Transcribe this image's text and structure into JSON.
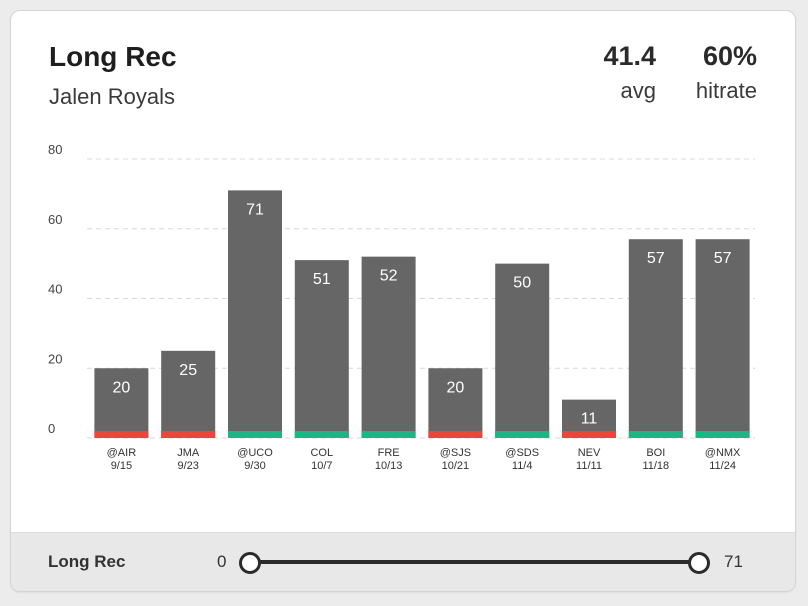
{
  "card": {
    "title": "Long Rec",
    "player": "Jalen Royals",
    "avg_value": "41.4",
    "avg_label": "avg",
    "hitrate_value": "60%",
    "hitrate_label": "hitrate"
  },
  "colors": {
    "bar": "#666666",
    "over": "#1db584",
    "under": "#e8463f",
    "grid": "#d8d8d8"
  },
  "chart_data": {
    "type": "bar",
    "categories": [
      "@AIR 9/15",
      "JMA 9/23",
      "@UCO 9/30",
      "COL 10/7",
      "FRE 10/13",
      "@SJS 10/21",
      "@SDS 11/4",
      "NEV 11/11",
      "BOI 11/18",
      "@NMX 11/24"
    ],
    "opponents": [
      "@AIR",
      "JMA",
      "@UCO",
      "COL",
      "FRE",
      "@SJS",
      "@SDS",
      "NEV",
      "BOI",
      "@NMX"
    ],
    "dates": [
      "9/15",
      "9/23",
      "9/30",
      "10/7",
      "10/13",
      "10/21",
      "11/4",
      "11/11",
      "11/18",
      "11/24"
    ],
    "values": [
      20,
      25,
      71,
      51,
      52,
      20,
      50,
      11,
      57,
      57
    ],
    "hit": [
      false,
      false,
      true,
      true,
      true,
      false,
      true,
      false,
      true,
      true
    ],
    "yticks": [
      0,
      20,
      40,
      60,
      80
    ],
    "ylim": [
      0,
      80
    ],
    "grid": true
  },
  "filter": {
    "label": "Long Rec",
    "min": "0",
    "max": "71"
  }
}
